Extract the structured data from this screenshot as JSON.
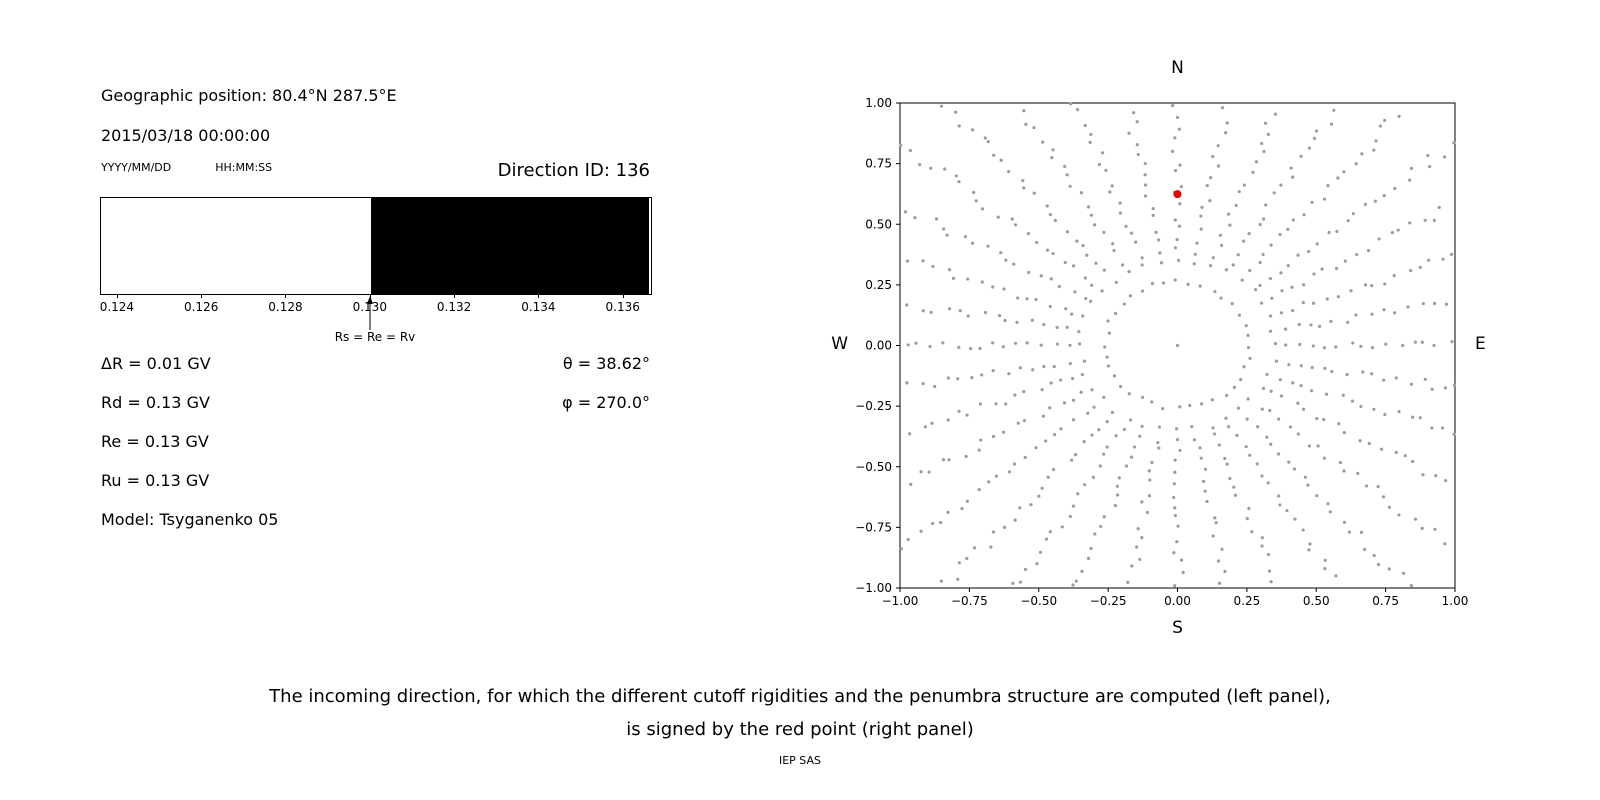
{
  "header": {
    "geo_position": "Geographic position: 80.4°N 287.5°E",
    "datetime": "2015/03/18 00:00:00",
    "date_format_label": "YYYY/MM/DD",
    "time_format_label": "HH:MM:SS",
    "direction_id": "Direction ID: 136"
  },
  "left_values": {
    "delta_r": "ΔR = 0.01 GV",
    "rd": "Rd = 0.13 GV",
    "re": "Re = 0.13 GV",
    "ru": "Ru = 0.13 GV",
    "model": "Model: Tsyganenko 05",
    "theta": "θ = 38.62°",
    "phi": "φ = 270.0°"
  },
  "caption": {
    "line1": "The incoming direction, for which the different cutoff rigidities and the penumbra structure are computed (left panel),",
    "line2": "is signed by the red point (right panel)",
    "credit": "IEP SAS"
  },
  "chart_data": [
    {
      "name": "penumbra-structure",
      "type": "bar",
      "xlim": [
        0.1236,
        0.1366
      ],
      "xticks": [
        0.124,
        0.126,
        0.128,
        0.13,
        0.132,
        0.134,
        0.136
      ],
      "tick_format_decimals": 3,
      "regions": [
        {
          "label": "allowed",
          "from": 0.1236,
          "to": 0.13,
          "color": "#ffffff"
        },
        {
          "label": "forbidden",
          "from": 0.13,
          "to": 0.1366,
          "color": "#000000"
        }
      ],
      "marker": {
        "x": 0.13,
        "label": "Rs = Re = Rv"
      }
    },
    {
      "name": "incoming-direction-map",
      "type": "scatter",
      "xlim": [
        -1.0,
        1.0
      ],
      "ylim": [
        -1.0,
        1.0
      ],
      "xticks": [
        -1,
        -0.75,
        -0.5,
        -0.25,
        0,
        0.25,
        0.5,
        0.75,
        1
      ],
      "yticks": [
        -1,
        -0.75,
        -0.5,
        -0.25,
        0,
        0.25,
        0.5,
        0.75,
        1
      ],
      "tick_format_decimals": 2,
      "compass": {
        "north": "N",
        "south": "S",
        "west": "W",
        "east": "E"
      },
      "dot_color": "#9b9b9b",
      "red_point": {
        "x": 0.0,
        "y": 0.624,
        "color": "#e60000"
      },
      "pattern": {
        "center_dot": true,
        "inner_ring": {
          "radius": 0.26,
          "count": 36
        },
        "spokes": {
          "count": 36,
          "start_deg": 0,
          "step_deg": 10,
          "r_start": 0.35,
          "r_end": 1.42,
          "r_step": 0.045,
          "clip": 1.0
        }
      }
    }
  ]
}
